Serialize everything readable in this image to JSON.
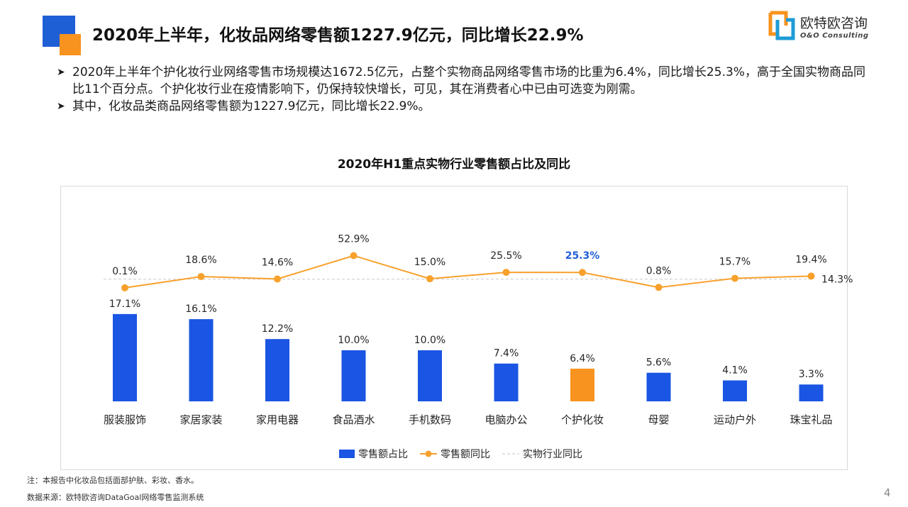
{
  "header": {
    "title": "2020年上半年，化妆品网络零售额1227.9亿元，同比增长22.9%",
    "logo_cn": "欧特欧咨询",
    "logo_en": "O&O Consulting"
  },
  "bullets": [
    "2020年上半年个护化妆行业网络零售市场规模达1672.5亿元，占整个实物商品网络零售市场的比重为6.4%，同比增长25.3%，高于全国实物商品同比11个百分点。个护化妆行业在疫情影响下，仍保持较快增长，可见，其在消费者心中已由可选变为刚需。",
    "其中，化妆品类商品网络零售额为1227.9亿元，同比增长22.9%。"
  ],
  "chart_data": {
    "type": "bar+line",
    "title": "2020年H1重点实物行业零售额占比及同比",
    "categories": [
      "服装服饰",
      "家居家装",
      "家用电器",
      "食品酒水",
      "手机数码",
      "电脑办公",
      "个护化妆",
      "母婴",
      "运动户外",
      "珠宝礼品"
    ],
    "series": [
      {
        "name": "零售额占比",
        "type": "bar",
        "values": [
          17.1,
          16.1,
          12.2,
          10.0,
          10.0,
          7.4,
          6.4,
          5.6,
          4.1,
          3.3
        ],
        "labels": [
          "17.1%",
          "16.1%",
          "12.2%",
          "10.0%",
          "10.0%",
          "7.4%",
          "6.4%",
          "5.6%",
          "4.1%",
          "3.3%"
        ],
        "color": "#1a55e3",
        "highlight_index": 6,
        "highlight_color": "#f7931e"
      },
      {
        "name": "零售额同比",
        "type": "line",
        "values": [
          0.1,
          18.6,
          14.6,
          52.9,
          15.0,
          25.5,
          25.3,
          0.8,
          15.7,
          19.4
        ],
        "labels": [
          "0.1%",
          "18.6%",
          "14.6%",
          "52.9%",
          "15.0%",
          "25.5%",
          "25.3%",
          "0.8%",
          "15.7%",
          "19.4%"
        ],
        "color": "#f7a12c",
        "highlight_index": 6,
        "highlight_label_color": "#1f5fd6"
      },
      {
        "name": "实物行业同比",
        "type": "reference-line",
        "value": 14.3,
        "label": "14.3%",
        "color": "#cfcfcf"
      }
    ],
    "legend_position": "bottom",
    "grid": false
  },
  "footnotes": {
    "note": "注：本报告中化妆品包括面部护肤、彩妆、香水。",
    "source": "数据来源：欧特欧咨询DataGoal网络零售监测系统"
  },
  "page_number": "4"
}
